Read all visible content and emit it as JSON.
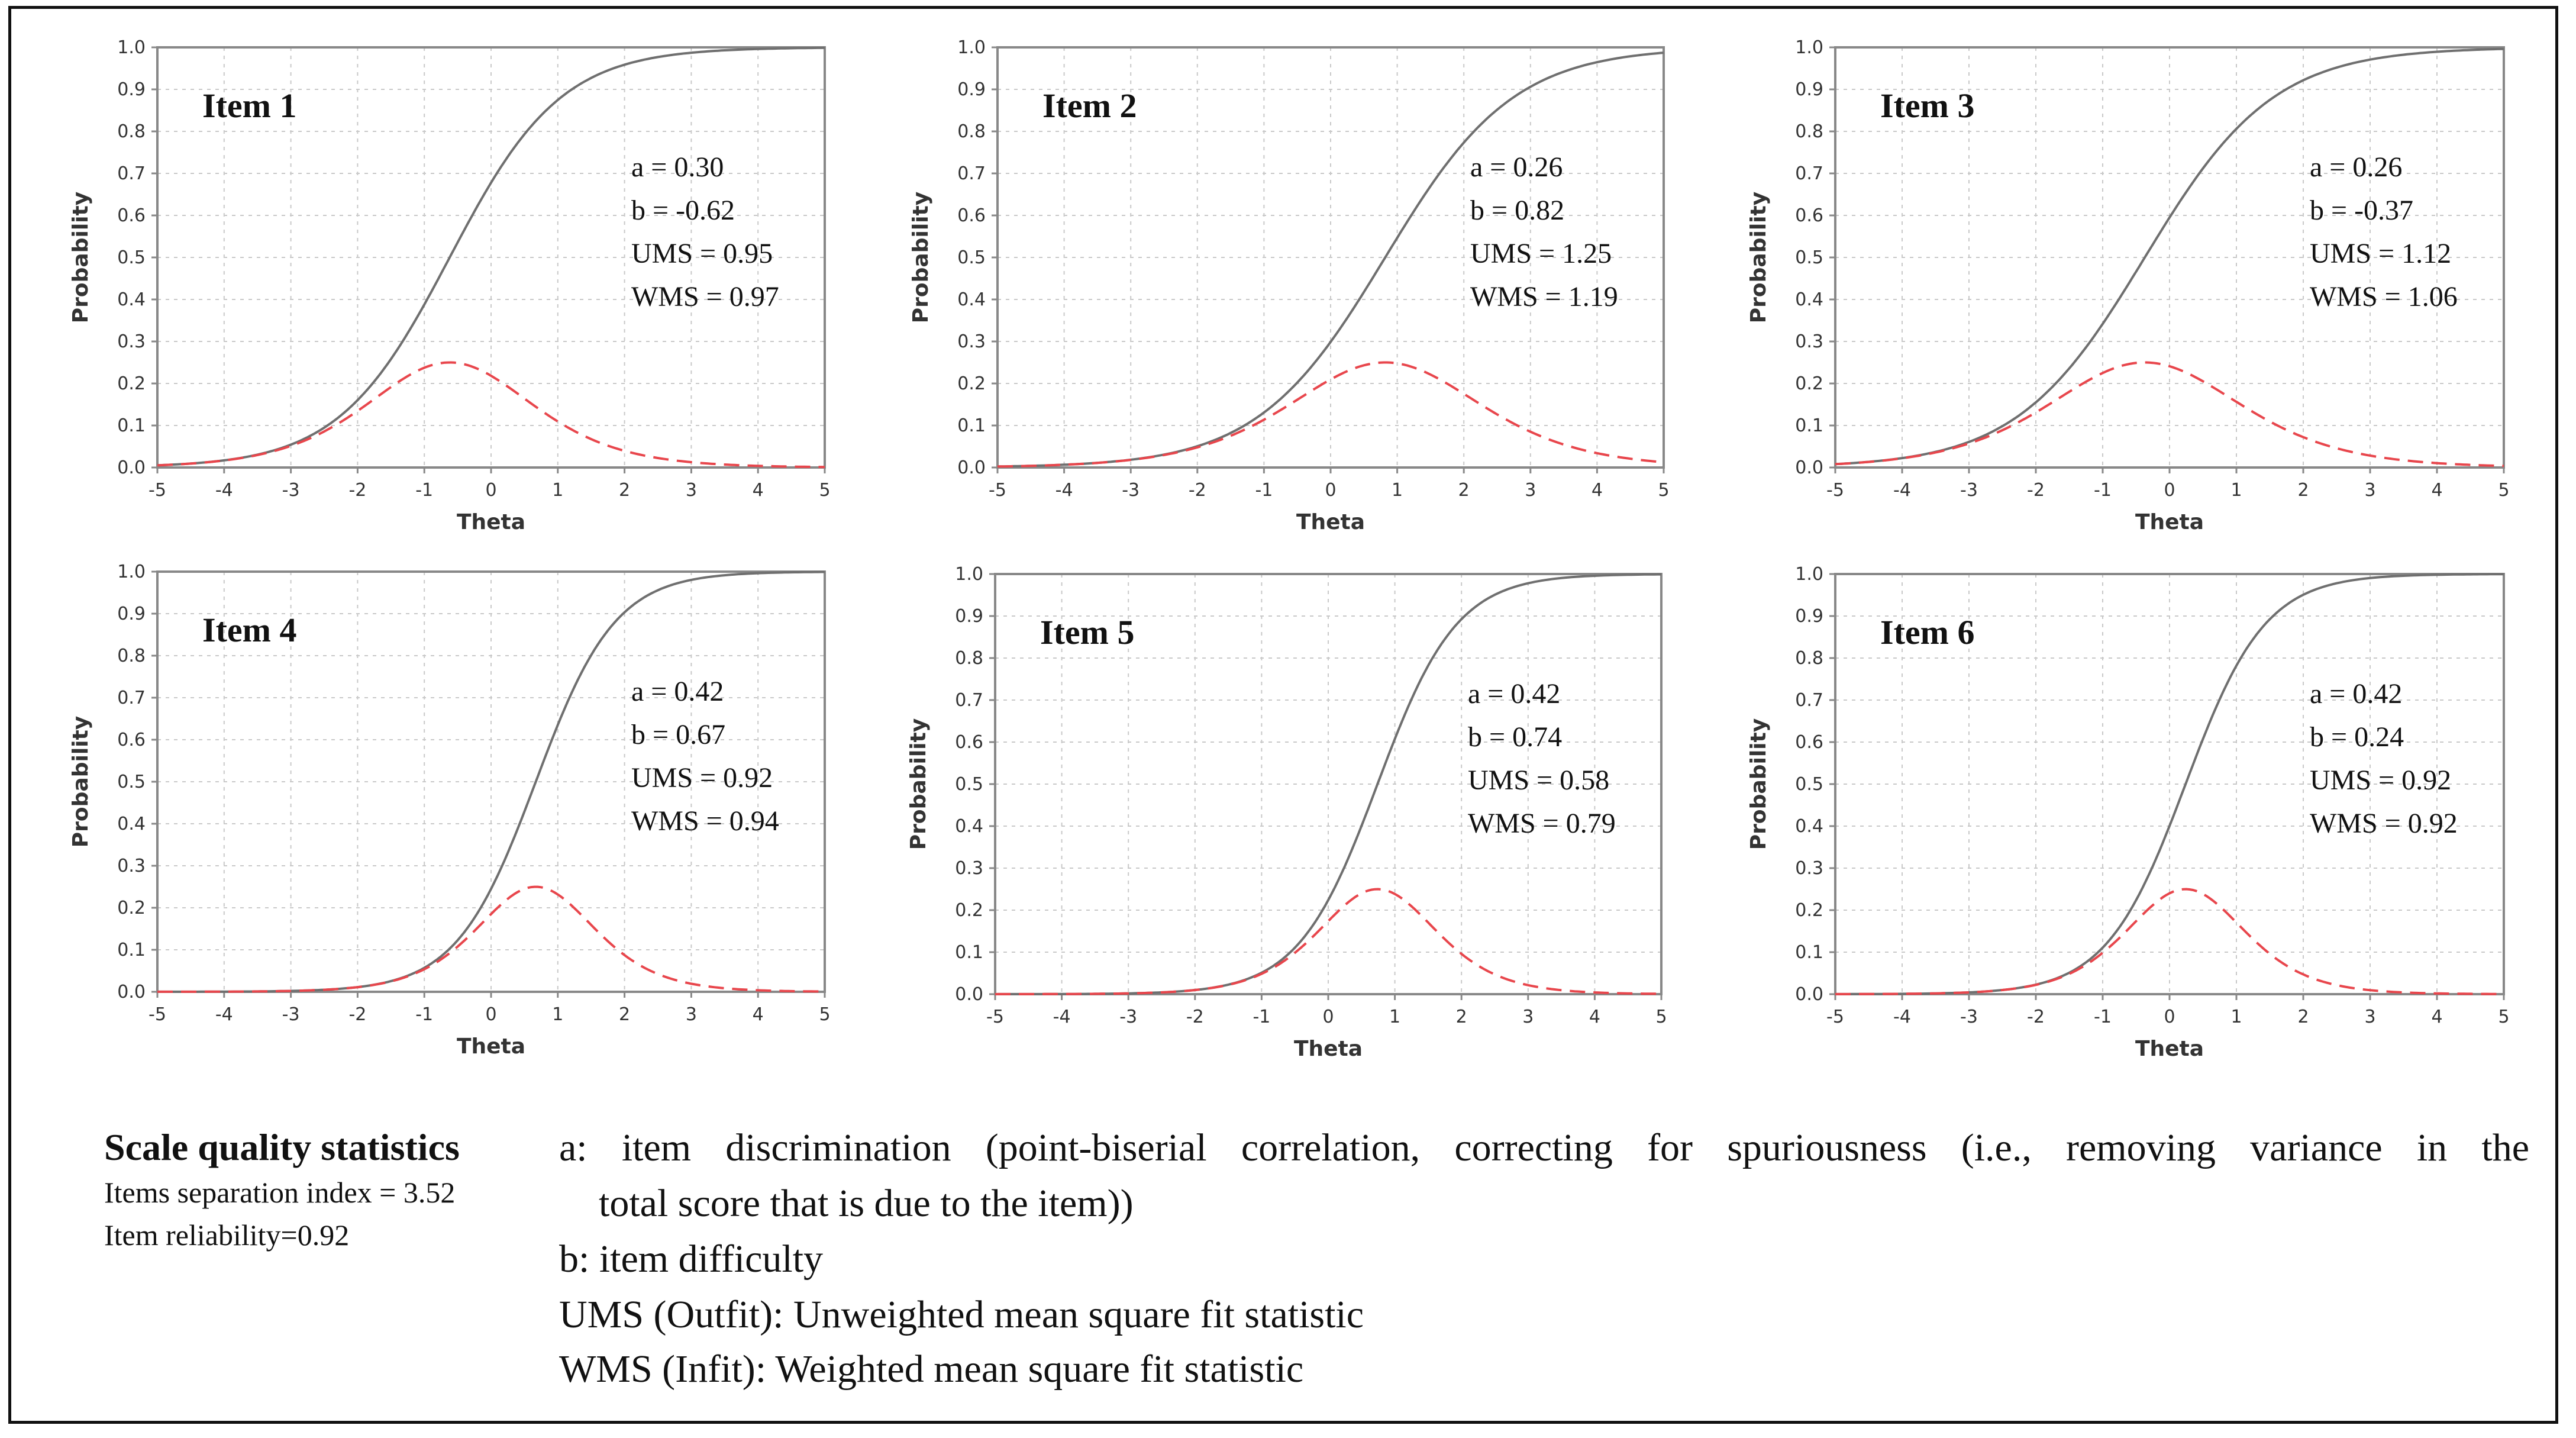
{
  "colors": {
    "icc": "#6f6f6f",
    "info": "#e8464c",
    "grid": "#c9c9c9",
    "axis": "#888888"
  },
  "chart_data": [
    {
      "type": "line",
      "title": "Item 1",
      "params": {
        "a": 0.3,
        "b": -0.62
      },
      "stats": [
        "a = 0.30",
        "b = -0.62",
        "UMS = 0.95",
        "WMS = 0.97"
      ],
      "xlabel": "Theta",
      "ylabel": "Probability",
      "xlim": [
        -5,
        5
      ],
      "ylim": [
        0,
        1
      ],
      "xticks": [
        "-5",
        "-4",
        "-3",
        "-2",
        "-1",
        "0",
        "1",
        "2",
        "3",
        "4",
        "5"
      ],
      "yticks": [
        "0.0",
        "0.1",
        "0.2",
        "0.3",
        "0.4",
        "0.5",
        "0.6",
        "0.7",
        "0.8",
        "0.9",
        "1.0"
      ],
      "series": [
        {
          "name": "Item characteristic curve"
        },
        {
          "name": "Item information"
        }
      ]
    },
    {
      "type": "line",
      "title": "Item 2",
      "params": {
        "a": 0.26,
        "b": 0.82
      },
      "stats": [
        "a = 0.26",
        "b = 0.82",
        "UMS = 1.25",
        "WMS = 1.19"
      ],
      "xlabel": "Theta",
      "ylabel": "Probability",
      "xlim": [
        -5,
        5
      ],
      "ylim": [
        0,
        1
      ],
      "xticks": [
        "-5",
        "-4",
        "-3",
        "-2",
        "-1",
        "0",
        "1",
        "2",
        "3",
        "4",
        "5"
      ],
      "yticks": [
        "0.0",
        "0.1",
        "0.2",
        "0.3",
        "0.4",
        "0.5",
        "0.6",
        "0.7",
        "0.8",
        "0.9",
        "1.0"
      ],
      "series": [
        {
          "name": "Item characteristic curve"
        },
        {
          "name": "Item information"
        }
      ]
    },
    {
      "type": "line",
      "title": "Item 3",
      "params": {
        "a": 0.26,
        "b": -0.37
      },
      "stats": [
        "a = 0.26",
        "b = -0.37",
        "UMS = 1.12",
        "WMS = 1.06"
      ],
      "xlabel": "Theta",
      "ylabel": "Probability",
      "xlim": [
        -5,
        5
      ],
      "ylim": [
        0,
        1
      ],
      "xticks": [
        "-5",
        "-4",
        "-3",
        "-2",
        "-1",
        "0",
        "1",
        "2",
        "3",
        "4",
        "5"
      ],
      "yticks": [
        "0.0",
        "0.1",
        "0.2",
        "0.3",
        "0.4",
        "0.5",
        "0.6",
        "0.7",
        "0.8",
        "0.9",
        "1.0"
      ],
      "series": [
        {
          "name": "Item characteristic curve"
        },
        {
          "name": "Item information"
        }
      ]
    },
    {
      "type": "line",
      "title": "Item 4",
      "params": {
        "a": 0.42,
        "b": 0.67
      },
      "stats": [
        "a = 0.42",
        "b = 0.67",
        "UMS = 0.92",
        "WMS = 0.94"
      ],
      "xlabel": "Theta",
      "ylabel": "Probability",
      "xlim": [
        -5,
        5
      ],
      "ylim": [
        0,
        1
      ],
      "xticks": [
        "-5",
        "-4",
        "-3",
        "-2",
        "-1",
        "0",
        "1",
        "2",
        "3",
        "4",
        "5"
      ],
      "yticks": [
        "0.0",
        "0.1",
        "0.2",
        "0.3",
        "0.4",
        "0.5",
        "0.6",
        "0.7",
        "0.8",
        "0.9",
        "1.0"
      ],
      "series": [
        {
          "name": "Item characteristic curve"
        },
        {
          "name": "Item information"
        }
      ]
    },
    {
      "type": "line",
      "title": "Item 5",
      "params": {
        "a": 0.42,
        "b": 0.74
      },
      "stats": [
        "a = 0.42",
        "b = 0.74",
        "UMS = 0.58",
        "WMS = 0.79"
      ],
      "xlabel": "Theta",
      "ylabel": "Probability",
      "xlim": [
        -5,
        5
      ],
      "ylim": [
        0,
        1
      ],
      "xticks": [
        "-5",
        "-4",
        "-3",
        "-2",
        "-1",
        "0",
        "1",
        "2",
        "3",
        "4",
        "5"
      ],
      "yticks": [
        "0.0",
        "0.1",
        "0.2",
        "0.3",
        "0.4",
        "0.5",
        "0.6",
        "0.7",
        "0.8",
        "0.9",
        "1.0"
      ],
      "series": [
        {
          "name": "Item characteristic curve"
        },
        {
          "name": "Item information"
        }
      ]
    },
    {
      "type": "line",
      "title": "Item 6",
      "params": {
        "a": 0.42,
        "b": 0.24
      },
      "stats": [
        "a = 0.42",
        "b = 0.24",
        "UMS = 0.92",
        "WMS = 0.92"
      ],
      "xlabel": "Theta",
      "ylabel": "Probability",
      "xlim": [
        -5,
        5
      ],
      "ylim": [
        0,
        1
      ],
      "xticks": [
        "-5",
        "-4",
        "-3",
        "-2",
        "-1",
        "0",
        "1",
        "2",
        "3",
        "4",
        "5"
      ],
      "yticks": [
        "0.0",
        "0.1",
        "0.2",
        "0.3",
        "0.4",
        "0.5",
        "0.6",
        "0.7",
        "0.8",
        "0.9",
        "1.0"
      ],
      "series": [
        {
          "name": "Item characteristic curve"
        },
        {
          "name": "Item information"
        }
      ]
    }
  ],
  "scale_quality": {
    "title": "Scale quality statistics",
    "separation": "Items separation index = 3.52",
    "reliability": "Item reliability=0.92"
  },
  "definitions": {
    "a_line1": "a: item discrimination (point-biserial correlation, correcting for spuriousness (i.e., removing variance in the",
    "a_line2": "total score that is due to the item))",
    "b": "b: item difficulty",
    "ums": "UMS (Outfit): Unweighted mean square fit statistic",
    "wms": "WMS (Infit): Weighted mean square fit statistic"
  }
}
